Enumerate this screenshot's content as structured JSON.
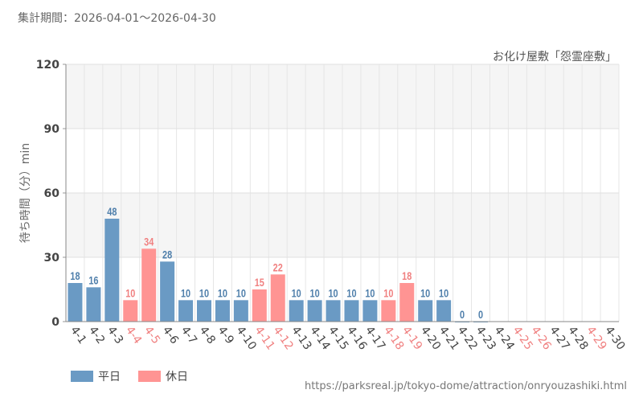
{
  "header": {
    "period": "集計期間：2026-04-01～2026-04-30"
  },
  "footer": {
    "source_url": "https://parksreal.jp/tokyo-dome/attraction/onryouzashiki.html"
  },
  "colors": {
    "weekday": "#6a9ac4",
    "holiday": "#ff9493",
    "holiday_text": "#f08080",
    "weekday_text": "#4f7fab"
  },
  "chart_data": {
    "type": "bar",
    "title": "お化け屋敷「怨霊座敷」",
    "ylabel": "待ち時間（分）min",
    "xlabel": "",
    "ylim": [
      0,
      120
    ],
    "yticks": [
      0,
      30,
      60,
      90,
      120
    ],
    "grid": true,
    "legend_position": "bottom-left",
    "legend": [
      {
        "name": "平日",
        "type": "weekday"
      },
      {
        "name": "休日",
        "type": "holiday"
      }
    ],
    "categories": [
      "4-1",
      "4-2",
      "4-3",
      "4-4",
      "4-5",
      "4-6",
      "4-7",
      "4-8",
      "4-9",
      "4-10",
      "4-11",
      "4-12",
      "4-13",
      "4-14",
      "4-15",
      "4-16",
      "4-17",
      "4-18",
      "4-19",
      "4-20",
      "4-21",
      "4-22",
      "4-23",
      "4-24",
      "4-25",
      "4-26",
      "4-27",
      "4-28",
      "4-29",
      "4-30"
    ],
    "values": [
      18,
      16,
      48,
      10,
      34,
      28,
      10,
      10,
      10,
      10,
      15,
      22,
      10,
      10,
      10,
      10,
      10,
      10,
      18,
      10,
      10,
      0,
      0,
      null,
      null,
      null,
      null,
      null,
      null,
      null
    ],
    "day_types": [
      "weekday",
      "weekday",
      "weekday",
      "holiday",
      "holiday",
      "weekday",
      "weekday",
      "weekday",
      "weekday",
      "weekday",
      "holiday",
      "holiday",
      "weekday",
      "weekday",
      "weekday",
      "weekday",
      "weekday",
      "holiday",
      "holiday",
      "weekday",
      "weekday",
      "weekday",
      "weekday",
      "weekday",
      "holiday",
      "holiday",
      "weekday",
      "weekday",
      "holiday",
      "weekday"
    ]
  }
}
